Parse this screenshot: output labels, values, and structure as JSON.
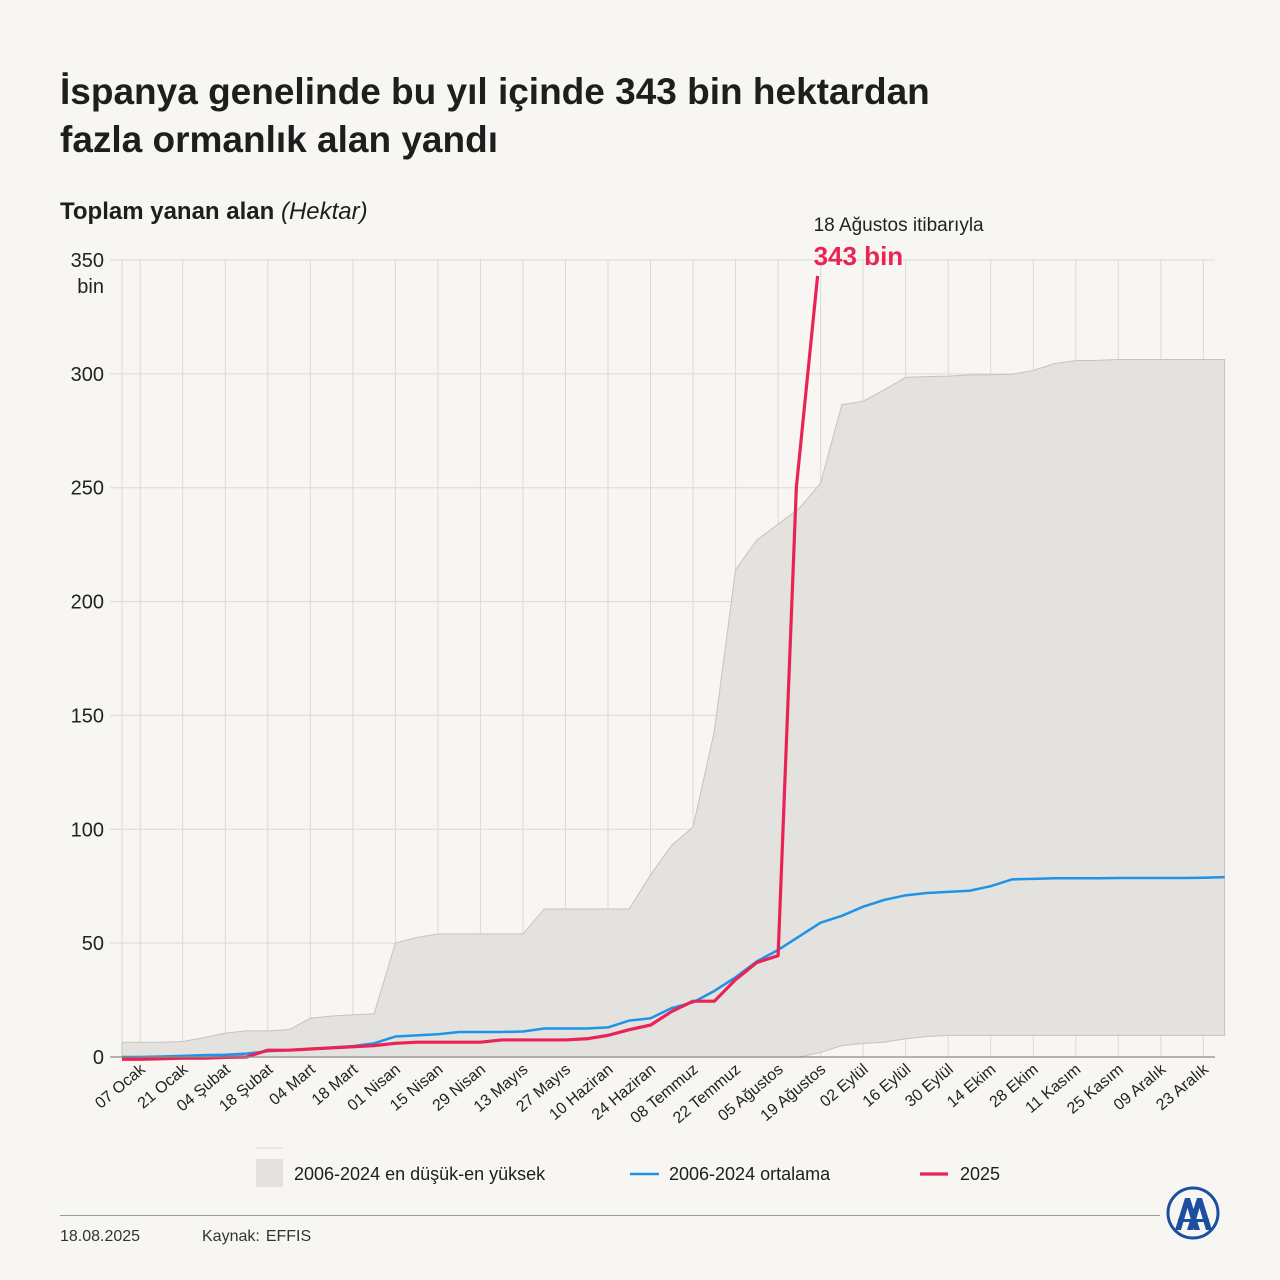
{
  "title_line1": "İspanya genelinde bu yıl içinde 343 bin hektardan",
  "title_line2": "fazla ormanlık alan yandı",
  "subtitle_bold": "Toplam yanan alan",
  "subtitle_unit": "(Hektar)",
  "footer": {
    "date": "18.08.2025",
    "source_label": "Kaynak:",
    "source": "EFFIS"
  },
  "logo_text": "AA",
  "colors": {
    "range_fill": "#e4e2df",
    "range_stroke": "#c6c3bf",
    "average": "#1f93e8",
    "current": "#ea2356",
    "grid": "#dcdad6",
    "background": "#f8f6f2"
  },
  "chart_data": {
    "type": "line",
    "ylabel": "Toplam yanan alan (Hektar)",
    "ylim": [
      0,
      350
    ],
    "y_ticks": [
      "0",
      "50",
      "100",
      "150",
      "200",
      "250",
      "300",
      "350"
    ],
    "y_top_unit": "bin",
    "x_tick_labels": [
      "07 Ocak",
      "21 Ocak",
      "04 Şubat",
      "18 Şubat",
      "04 Mart",
      "18 Mart",
      "01 Nisan",
      "15 Nisan",
      "29 Nisan",
      "13 Mayıs",
      "27 Mayıs",
      "10 Haziran",
      "24 Haziran",
      "08 Temmuz",
      "22 Temmuz",
      "05 Ağustos",
      "19 Ağustos",
      "02 Eylül",
      "16 Eylül",
      "30 Eylül",
      "14 Ekim",
      "28 Ekim",
      "11 Kasım",
      "25 Kasım",
      "09 Aralık",
      "23 Aralık"
    ],
    "grid": true,
    "legend_position": "bottom",
    "annotation": {
      "label": "18 Ağustos itibarıyla",
      "value_label": "343 bin",
      "x": "18 Ağustos",
      "y": 343
    },
    "range_band": {
      "name": "2006-2024 en düşük-en yüksek",
      "x": [
        "01 Ocak",
        "07 Ocak",
        "14 Ocak",
        "21 Ocak",
        "28 Ocak",
        "04 Şubat",
        "11 Şubat",
        "18 Şubat",
        "25 Şubat",
        "04 Mart",
        "11 Mart",
        "18 Mart",
        "25 Mart",
        "01 Nisan",
        "08 Nisan",
        "15 Nisan",
        "22 Nisan",
        "29 Nisan",
        "06 Mayıs",
        "13 Mayıs",
        "20 Mayıs",
        "27 Mayıs",
        "03 Haziran",
        "10 Haziran",
        "17 Haziran",
        "24 Haziran",
        "01 Temmuz",
        "08 Temmuz",
        "15 Temmuz",
        "22 Temmuz",
        "29 Temmuz",
        "05 Ağustos",
        "12 Ağustos",
        "19 Ağustos",
        "26 Ağustos",
        "02 Eylül",
        "09 Eylül",
        "16 Eylül",
        "23 Eylül",
        "30 Eylül",
        "07 Ekim",
        "14 Ekim",
        "21 Ekim",
        "28 Ekim",
        "04 Kasım",
        "11 Kasım",
        "18 Kasım",
        "25 Kasım",
        "02 Aralık",
        "09 Aralık",
        "16 Aralık",
        "23 Aralık",
        "30 Aralık"
      ],
      "high": [
        6.5,
        6.5,
        6.5,
        6.8,
        8.5,
        10.5,
        11.5,
        11.5,
        12.0,
        17.0,
        18.0,
        18.5,
        19.0,
        50.0,
        52.5,
        54.0,
        54.0,
        54.0,
        54.0,
        54.0,
        65.0,
        65.0,
        65.0,
        65.0,
        65.0,
        80.0,
        93.0,
        101.0,
        143.0,
        214.0,
        227.0,
        234.0,
        241.0,
        252.0,
        286.5,
        288.0,
        293.0,
        298.5,
        298.8,
        299.0,
        299.5,
        299.6,
        299.8,
        301.5,
        304.5,
        305.8,
        305.9,
        306.3,
        306.3,
        306.3,
        306.3,
        306.3,
        306.3
      ],
      "low": [
        0,
        0,
        0,
        0,
        0,
        0,
        0,
        0,
        0,
        0,
        0,
        0,
        0,
        0,
        0,
        0,
        0,
        0,
        0,
        0,
        0,
        0,
        0,
        0,
        0,
        0,
        0,
        0,
        0,
        0,
        0,
        0,
        0,
        2.0,
        5.0,
        6.0,
        6.5,
        8.0,
        9.0,
        9.5,
        9.5,
        9.5,
        9.5,
        9.5,
        9.5,
        9.5,
        9.5,
        9.5,
        9.5,
        9.5,
        9.5,
        9.5,
        9.5
      ]
    },
    "series": [
      {
        "name": "2006-2024 ortalama",
        "x": [
          "01 Ocak",
          "07 Ocak",
          "14 Ocak",
          "21 Ocak",
          "28 Ocak",
          "04 Şubat",
          "11 Şubat",
          "18 Şubat",
          "25 Şubat",
          "04 Mart",
          "11 Mart",
          "18 Mart",
          "25 Mart",
          "01 Nisan",
          "08 Nisan",
          "15 Nisan",
          "22 Nisan",
          "29 Nisan",
          "06 Mayıs",
          "13 Mayıs",
          "20 Mayıs",
          "27 Mayıs",
          "03 Haziran",
          "10 Haziran",
          "17 Haziran",
          "24 Haziran",
          "01 Temmuz",
          "08 Temmuz",
          "15 Temmuz",
          "22 Temmuz",
          "29 Temmuz",
          "05 Ağustos",
          "12 Ağustos",
          "19 Ağustos",
          "26 Ağustos",
          "02 Eylül",
          "09 Eylül",
          "16 Eylül",
          "23 Eylül",
          "30 Eylül",
          "07 Ekim",
          "14 Ekim",
          "21 Ekim",
          "28 Ekim",
          "04 Kasım",
          "11 Kasım",
          "18 Kasım",
          "25 Kasım",
          "02 Aralık",
          "09 Aralık",
          "16 Aralık",
          "23 Aralık",
          "30 Aralık"
        ],
        "values": [
          0,
          0,
          0.2,
          0.5,
          0.8,
          1.0,
          1.5,
          2.5,
          3.0,
          3.5,
          4.2,
          4.8,
          6.0,
          9.0,
          9.5,
          10.0,
          11.0,
          11.0,
          11.0,
          11.2,
          12.5,
          12.5,
          12.5,
          13.0,
          16.0,
          17.0,
          21.5,
          24.0,
          29.0,
          35.0,
          42.0,
          47.0,
          53.0,
          59.0,
          62.0,
          66.0,
          69.0,
          71.0,
          72.0,
          72.5,
          73.0,
          75.0,
          78.0,
          78.2,
          78.5,
          78.5,
          78.5,
          78.6,
          78.6,
          78.6,
          78.6,
          78.7,
          79.0
        ]
      },
      {
        "name": "2025",
        "x": [
          "01 Ocak",
          "07 Ocak",
          "14 Ocak",
          "21 Ocak",
          "28 Ocak",
          "04 Şubat",
          "11 Şubat",
          "18 Şubat",
          "25 Şubat",
          "04 Mart",
          "11 Mart",
          "18 Mart",
          "25 Mart",
          "01 Nisan",
          "08 Nisan",
          "15 Nisan",
          "22 Nisan",
          "29 Nisan",
          "06 Mayıs",
          "13 Mayıs",
          "20 Mayıs",
          "27 Mayıs",
          "03 Haziran",
          "10 Haziran",
          "17 Haziran",
          "24 Haziran",
          "01 Temmuz",
          "08 Temmuz",
          "15 Temmuz",
          "22 Temmuz",
          "29 Temmuz",
          "05 Ağustos",
          "11 Ağustos",
          "18 Ağustos"
        ],
        "values": [
          -1.0,
          -1.0,
          -0.8,
          -0.5,
          -0.5,
          -0.2,
          0,
          3.0,
          3.0,
          3.5,
          4.0,
          4.5,
          5.0,
          6.0,
          6.5,
          6.5,
          6.5,
          6.5,
          7.5,
          7.5,
          7.5,
          7.5,
          8.0,
          9.5,
          12.0,
          14.0,
          20.0,
          24.5,
          24.5,
          34.0,
          41.5,
          44.5,
          250.0,
          343.0
        ]
      }
    ]
  },
  "legend": [
    {
      "label": "2006-2024 en düşük-en yüksek",
      "type": "area"
    },
    {
      "label": "2006-2024 ortalama",
      "type": "line"
    },
    {
      "label": "2025",
      "type": "line"
    }
  ]
}
